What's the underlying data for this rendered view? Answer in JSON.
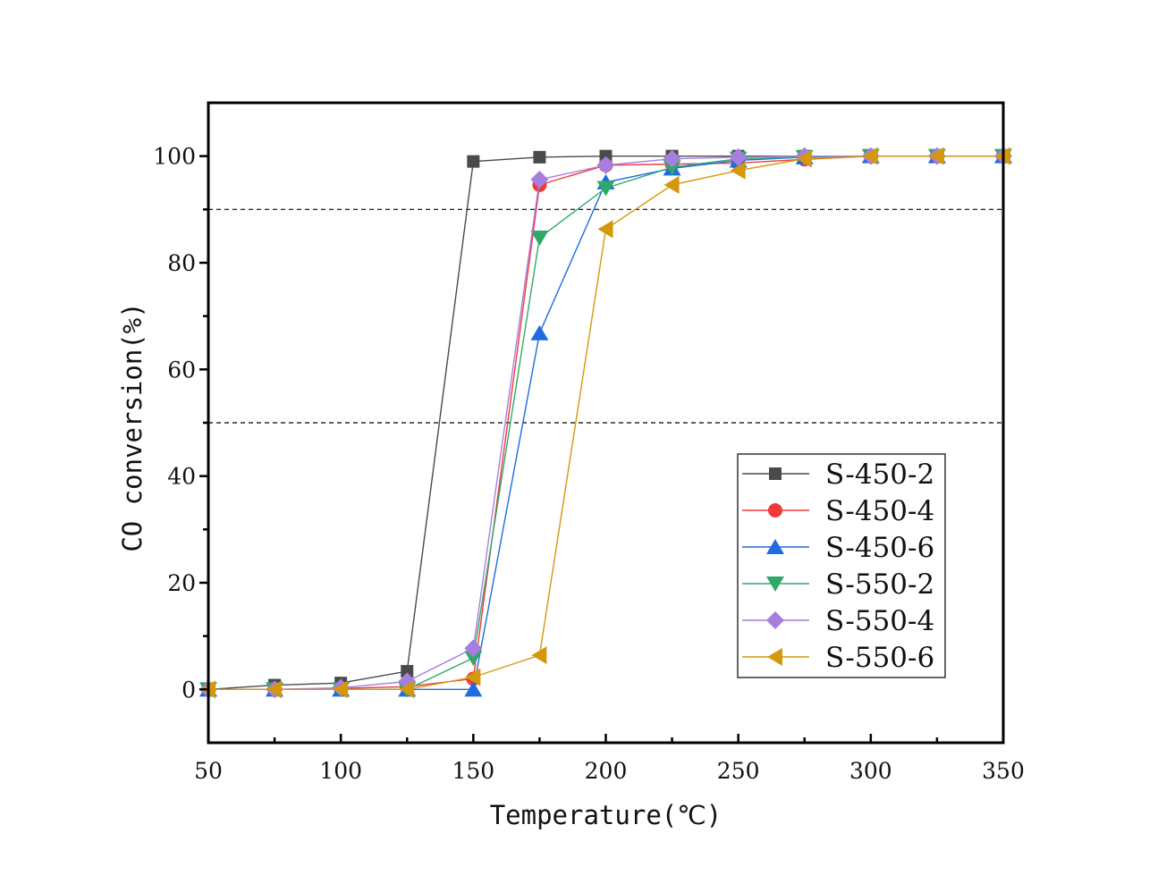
{
  "chart_data": {
    "type": "line",
    "title": "",
    "xlabel": "Temperature(℃)",
    "ylabel": "CO conversion(%)",
    "xlim": [
      50,
      350
    ],
    "ylim": [
      -10,
      110
    ],
    "x_ticks": [
      50,
      100,
      150,
      200,
      250,
      300,
      350
    ],
    "x_minor_ticks": [
      75,
      125,
      175,
      225,
      275,
      325
    ],
    "y_ticks": [
      0,
      20,
      40,
      60,
      80,
      100
    ],
    "y_minor_ticks": [
      10,
      30,
      50,
      70,
      90
    ],
    "grid": false,
    "reference_lines": [
      {
        "axis": "y",
        "value": 90,
        "style": "dashed"
      },
      {
        "axis": "y",
        "value": 50,
        "style": "dashed"
      }
    ],
    "legend_position": "lower-right",
    "x": [
      50,
      75,
      100,
      125,
      150,
      175,
      200,
      225,
      250,
      275,
      300,
      325,
      350
    ],
    "series": [
      {
        "name": "S-450-2",
        "color": "#4a4a4a",
        "marker": "square",
        "values": [
          0,
          0.8,
          1.2,
          3.4,
          99.0,
          99.8,
          100,
          100,
          100,
          100,
          100,
          100,
          100
        ]
      },
      {
        "name": "S-450-4",
        "color": "#f03a3a",
        "marker": "circle",
        "values": [
          0,
          0,
          0.2,
          0.5,
          2.0,
          94.6,
          98.3,
          98.5,
          98.7,
          99.4,
          100,
          100,
          100
        ]
      },
      {
        "name": "S-450-6",
        "color": "#1f6be0",
        "marker": "triangle-up",
        "values": [
          0,
          0,
          0,
          0,
          0,
          66.8,
          95.1,
          97.7,
          99.2,
          99.8,
          100,
          100,
          100
        ]
      },
      {
        "name": "S-550-2",
        "color": "#2fa86a",
        "marker": "triangle-down",
        "values": [
          0,
          0,
          0,
          0,
          5.9,
          84.7,
          94.0,
          97.9,
          99.5,
          99.8,
          100,
          100,
          100
        ]
      },
      {
        "name": "S-550-4",
        "color": "#a67ee0",
        "marker": "diamond",
        "values": [
          0,
          0,
          0.3,
          1.5,
          7.7,
          95.6,
          98.3,
          99.5,
          99.8,
          100,
          100,
          100,
          100
        ]
      },
      {
        "name": "S-550-6",
        "color": "#d4980a",
        "marker": "triangle-left",
        "values": [
          0,
          0,
          0,
          0,
          2.3,
          6.4,
          86.3,
          94.6,
          97.3,
          99.5,
          100,
          100,
          100
        ]
      }
    ]
  }
}
